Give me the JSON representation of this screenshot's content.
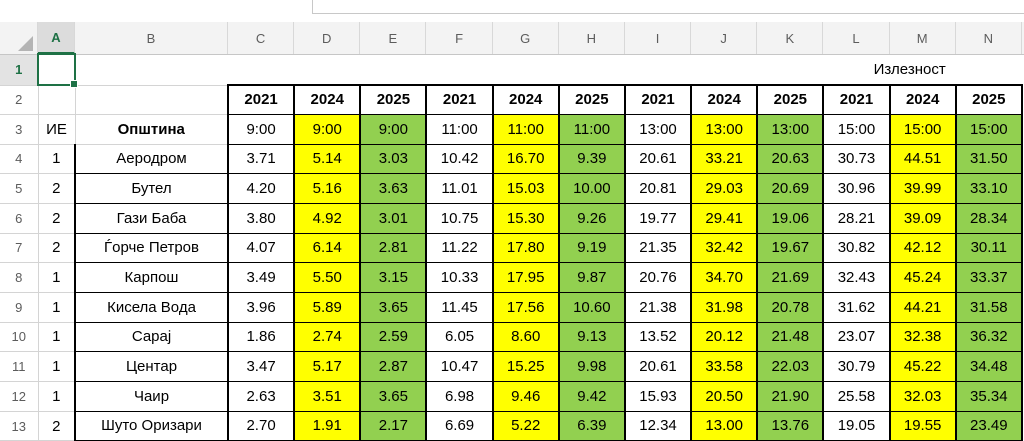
{
  "sheet": {
    "column_headers": [
      "A",
      "B",
      "C",
      "D",
      "E",
      "F",
      "G",
      "H",
      "I",
      "J",
      "K",
      "L",
      "M",
      "N"
    ],
    "row_headers": [
      "1",
      "2",
      "3",
      "4",
      "5",
      "6",
      "7",
      "8",
      "9",
      "10",
      "11",
      "12",
      "13"
    ],
    "selection": {
      "active_cell": "A1"
    },
    "title_label": "Излезност",
    "table": {
      "ie_header": "ИЕ",
      "municipality_header": "Општина",
      "years": [
        "2021",
        "2024",
        "2025",
        "2021",
        "2024",
        "2025",
        "2021",
        "2024",
        "2025",
        "2021",
        "2024",
        "2025"
      ],
      "times": [
        "9:00",
        "9:00",
        "9:00",
        "11:00",
        "11:00",
        "11:00",
        "13:00",
        "13:00",
        "13:00",
        "15:00",
        "15:00",
        "15:00"
      ],
      "rows": [
        {
          "ie": "1",
          "name": "Аеродром",
          "values": [
            "3.71",
            "5.14",
            "3.03",
            "10.42",
            "16.70",
            "9.39",
            "20.61",
            "33.21",
            "20.63",
            "30.73",
            "44.51",
            "31.50"
          ]
        },
        {
          "ie": "2",
          "name": "Бутел",
          "values": [
            "4.20",
            "5.16",
            "3.63",
            "11.01",
            "15.03",
            "10.00",
            "20.81",
            "29.03",
            "20.69",
            "30.96",
            "39.99",
            "33.10"
          ]
        },
        {
          "ie": "2",
          "name": "Гази Баба",
          "values": [
            "3.80",
            "4.92",
            "3.01",
            "10.75",
            "15.30",
            "9.26",
            "19.77",
            "29.41",
            "19.06",
            "28.21",
            "39.09",
            "28.34"
          ]
        },
        {
          "ie": "2",
          "name": "Ѓорче Петров",
          "values": [
            "4.07",
            "6.14",
            "2.81",
            "11.22",
            "17.80",
            "9.19",
            "21.35",
            "32.42",
            "19.67",
            "30.82",
            "42.12",
            "30.11"
          ]
        },
        {
          "ie": "1",
          "name": "Карпош",
          "values": [
            "3.49",
            "5.50",
            "3.15",
            "10.33",
            "17.95",
            "9.87",
            "20.76",
            "34.70",
            "21.69",
            "32.43",
            "45.24",
            "33.37"
          ]
        },
        {
          "ie": "1",
          "name": "Кисела Вода",
          "values": [
            "3.96",
            "5.89",
            "3.65",
            "11.45",
            "17.56",
            "10.60",
            "21.38",
            "31.98",
            "20.78",
            "31.62",
            "44.21",
            "31.58"
          ]
        },
        {
          "ie": "1",
          "name": "Сарај",
          "values": [
            "1.86",
            "2.74",
            "2.59",
            "6.05",
            "8.60",
            "9.13",
            "13.52",
            "20.12",
            "21.48",
            "23.07",
            "32.38",
            "36.32"
          ]
        },
        {
          "ie": "1",
          "name": "Центар",
          "values": [
            "3.47",
            "5.17",
            "2.87",
            "10.47",
            "15.25",
            "9.98",
            "20.61",
            "33.58",
            "22.03",
            "30.79",
            "45.22",
            "34.48"
          ]
        },
        {
          "ie": "1",
          "name": "Чаир",
          "values": [
            "2.63",
            "3.51",
            "3.65",
            "6.98",
            "9.46",
            "9.42",
            "15.93",
            "20.50",
            "21.90",
            "25.58",
            "32.03",
            "35.34"
          ]
        },
        {
          "ie": "2",
          "name": "Шуто Оризари",
          "values": [
            "2.70",
            "1.91",
            "2.17",
            "6.69",
            "5.22",
            "6.39",
            "12.34",
            "13.00",
            "13.76",
            "19.05",
            "19.55",
            "23.49"
          ]
        }
      ]
    },
    "colors": {
      "highlight_yellow": "#FFFF00",
      "highlight_green": "#92D050",
      "selection_green": "#1E7145",
      "grid_line": "#D4D4D4"
    }
  }
}
